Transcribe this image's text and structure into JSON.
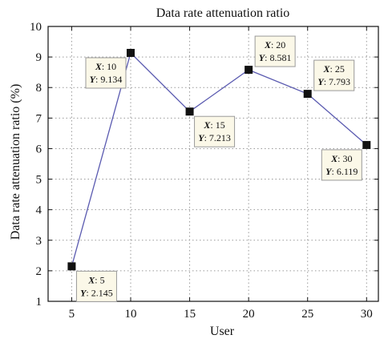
{
  "chart_data": {
    "type": "line",
    "title": "Data rate attenuation ratio",
    "xlabel": "User",
    "ylabel": "Data rate attenuation ratio (%)",
    "xlim": [
      3,
      31
    ],
    "ylim": [
      1,
      10
    ],
    "x_ticks": [
      5,
      10,
      15,
      20,
      25,
      30
    ],
    "y_ticks": [
      1,
      2,
      3,
      4,
      5,
      6,
      7,
      8,
      9,
      10
    ],
    "grid": true,
    "series": [
      {
        "x": [
          5,
          10,
          15,
          20,
          25,
          30
        ],
        "y": [
          2.145,
          9.134,
          7.213,
          8.581,
          7.793,
          6.119
        ]
      }
    ],
    "annotations": [
      {
        "x_text": "5",
        "y_text": "2.145",
        "placement": "right-below"
      },
      {
        "x_text": "10",
        "y_text": "9.134",
        "placement": "left-below"
      },
      {
        "x_text": "15",
        "y_text": "7.213",
        "placement": "right-below"
      },
      {
        "x_text": "20",
        "y_text": "8.581",
        "placement": "right-above"
      },
      {
        "x_text": "25",
        "y_text": "7.793",
        "placement": "right-above"
      },
      {
        "x_text": "30",
        "y_text": "6.119",
        "placement": "left-below"
      }
    ],
    "annotation_prefix_x": "X",
    "annotation_prefix_y": "Y",
    "colors": {
      "line": "#5a5ab0",
      "marker": "#111111",
      "tooltip_bg": "#fbf8e8",
      "tooltip_border": "#999999",
      "grid": "#9a9a9a"
    }
  }
}
